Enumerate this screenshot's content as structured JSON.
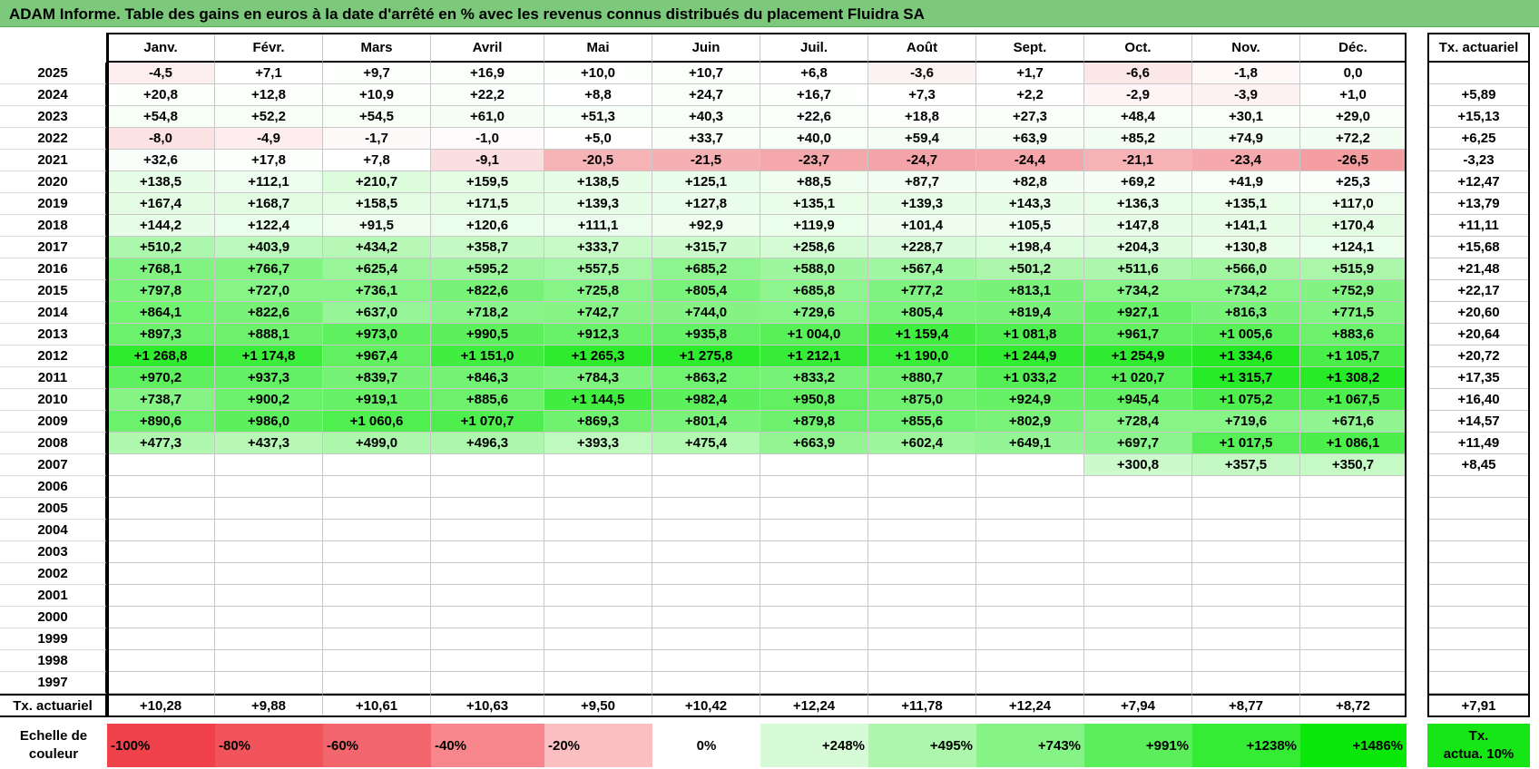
{
  "title": "ADAM Informe. Table des gains en euros à la date d'arrêté en % avec les revenus connus distribués du placement Fluidra SA",
  "months": [
    "Janv.",
    "Févr.",
    "Mars",
    "Avril",
    "Mai",
    "Juin",
    "Juil.",
    "Août",
    "Sept.",
    "Oct.",
    "Nov.",
    "Déc."
  ],
  "rate_header": "Tx. actuariel",
  "rows": [
    {
      "year": "2025",
      "values": [
        "-4,5",
        "+7,1",
        "+9,7",
        "+16,9",
        "+10,0",
        "+10,7",
        "+6,8",
        "-3,6",
        "+1,7",
        "-6,6",
        "-1,8",
        "0,0"
      ],
      "rate": ""
    },
    {
      "year": "2024",
      "values": [
        "+20,8",
        "+12,8",
        "+10,9",
        "+22,2",
        "+8,8",
        "+24,7",
        "+16,7",
        "+7,3",
        "+2,2",
        "-2,9",
        "-3,9",
        "+1,0"
      ],
      "rate": "+5,89"
    },
    {
      "year": "2023",
      "values": [
        "+54,8",
        "+52,2",
        "+54,5",
        "+61,0",
        "+51,3",
        "+40,3",
        "+22,6",
        "+18,8",
        "+27,3",
        "+48,4",
        "+30,1",
        "+29,0"
      ],
      "rate": "+15,13"
    },
    {
      "year": "2022",
      "values": [
        "-8,0",
        "-4,9",
        "-1,7",
        "-1,0",
        "+5,0",
        "+33,7",
        "+40,0",
        "+59,4",
        "+63,9",
        "+85,2",
        "+74,9",
        "+72,2"
      ],
      "rate": "+6,25"
    },
    {
      "year": "2021",
      "values": [
        "+32,6",
        "+17,8",
        "+7,8",
        "-9,1",
        "-20,5",
        "-21,5",
        "-23,7",
        "-24,7",
        "-24,4",
        "-21,1",
        "-23,4",
        "-26,5"
      ],
      "rate": "-3,23"
    },
    {
      "year": "2020",
      "values": [
        "+138,5",
        "+112,1",
        "+210,7",
        "+159,5",
        "+138,5",
        "+125,1",
        "+88,5",
        "+87,7",
        "+82,8",
        "+69,2",
        "+41,9",
        "+25,3"
      ],
      "rate": "+12,47"
    },
    {
      "year": "2019",
      "values": [
        "+167,4",
        "+168,7",
        "+158,5",
        "+171,5",
        "+139,3",
        "+127,8",
        "+135,1",
        "+139,3",
        "+143,3",
        "+136,3",
        "+135,1",
        "+117,0"
      ],
      "rate": "+13,79"
    },
    {
      "year": "2018",
      "values": [
        "+144,2",
        "+122,4",
        "+91,5",
        "+120,6",
        "+111,1",
        "+92,9",
        "+119,9",
        "+101,4",
        "+105,5",
        "+147,8",
        "+141,1",
        "+170,4"
      ],
      "rate": "+11,11"
    },
    {
      "year": "2017",
      "values": [
        "+510,2",
        "+403,9",
        "+434,2",
        "+358,7",
        "+333,7",
        "+315,7",
        "+258,6",
        "+228,7",
        "+198,4",
        "+204,3",
        "+130,8",
        "+124,1"
      ],
      "rate": "+15,68"
    },
    {
      "year": "2016",
      "values": [
        "+768,1",
        "+766,7",
        "+625,4",
        "+595,2",
        "+557,5",
        "+685,2",
        "+588,0",
        "+567,4",
        "+501,2",
        "+511,6",
        "+566,0",
        "+515,9"
      ],
      "rate": "+21,48"
    },
    {
      "year": "2015",
      "values": [
        "+797,8",
        "+727,0",
        "+736,1",
        "+822,6",
        "+725,8",
        "+805,4",
        "+685,8",
        "+777,2",
        "+813,1",
        "+734,2",
        "+734,2",
        "+752,9"
      ],
      "rate": "+22,17"
    },
    {
      "year": "2014",
      "values": [
        "+864,1",
        "+822,6",
        "+637,0",
        "+718,2",
        "+742,7",
        "+744,0",
        "+729,6",
        "+805,4",
        "+819,4",
        "+927,1",
        "+816,3",
        "+771,5"
      ],
      "rate": "+20,60"
    },
    {
      "year": "2013",
      "values": [
        "+897,3",
        "+888,1",
        "+973,0",
        "+990,5",
        "+912,3",
        "+935,8",
        "+1 004,0",
        "+1 159,4",
        "+1 081,8",
        "+961,7",
        "+1 005,6",
        "+883,6"
      ],
      "rate": "+20,64"
    },
    {
      "year": "2012",
      "values": [
        "+1 268,8",
        "+1 174,8",
        "+967,4",
        "+1 151,0",
        "+1 265,3",
        "+1 275,8",
        "+1 212,1",
        "+1 190,0",
        "+1 244,9",
        "+1 254,9",
        "+1 334,6",
        "+1 105,7"
      ],
      "rate": "+20,72"
    },
    {
      "year": "2011",
      "values": [
        "+970,2",
        "+937,3",
        "+839,7",
        "+846,3",
        "+784,3",
        "+863,2",
        "+833,2",
        "+880,7",
        "+1 033,2",
        "+1 020,7",
        "+1 315,7",
        "+1 308,2"
      ],
      "rate": "+17,35"
    },
    {
      "year": "2010",
      "values": [
        "+738,7",
        "+900,2",
        "+919,1",
        "+885,6",
        "+1 144,5",
        "+982,4",
        "+950,8",
        "+875,0",
        "+924,9",
        "+945,4",
        "+1 075,2",
        "+1 067,5"
      ],
      "rate": "+16,40"
    },
    {
      "year": "2009",
      "values": [
        "+890,6",
        "+986,0",
        "+1 060,6",
        "+1 070,7",
        "+869,3",
        "+801,4",
        "+879,8",
        "+855,6",
        "+802,9",
        "+728,4",
        "+719,6",
        "+671,6"
      ],
      "rate": "+14,57"
    },
    {
      "year": "2008",
      "values": [
        "+477,3",
        "+437,3",
        "+499,0",
        "+496,3",
        "+393,3",
        "+475,4",
        "+663,9",
        "+602,4",
        "+649,1",
        "+697,7",
        "+1 017,5",
        "+1 086,1"
      ],
      "rate": "+11,49"
    },
    {
      "year": "2007",
      "values": [
        "",
        "",
        "",
        "",
        "",
        "",
        "",
        "",
        "",
        "+300,8",
        "+357,5",
        "+350,7"
      ],
      "rate": "+8,45"
    },
    {
      "year": "2006",
      "values": [
        "",
        "",
        "",
        "",
        "",
        "",
        "",
        "",
        "",
        "",
        "",
        ""
      ],
      "rate": ""
    },
    {
      "year": "2005",
      "values": [
        "",
        "",
        "",
        "",
        "",
        "",
        "",
        "",
        "",
        "",
        "",
        ""
      ],
      "rate": ""
    },
    {
      "year": "2004",
      "values": [
        "",
        "",
        "",
        "",
        "",
        "",
        "",
        "",
        "",
        "",
        "",
        ""
      ],
      "rate": ""
    },
    {
      "year": "2003",
      "values": [
        "",
        "",
        "",
        "",
        "",
        "",
        "",
        "",
        "",
        "",
        "",
        ""
      ],
      "rate": ""
    },
    {
      "year": "2002",
      "values": [
        "",
        "",
        "",
        "",
        "",
        "",
        "",
        "",
        "",
        "",
        "",
        ""
      ],
      "rate": ""
    },
    {
      "year": "2001",
      "values": [
        "",
        "",
        "",
        "",
        "",
        "",
        "",
        "",
        "",
        "",
        "",
        ""
      ],
      "rate": ""
    },
    {
      "year": "2000",
      "values": [
        "",
        "",
        "",
        "",
        "",
        "",
        "",
        "",
        "",
        "",
        "",
        ""
      ],
      "rate": ""
    },
    {
      "year": "1999",
      "values": [
        "",
        "",
        "",
        "",
        "",
        "",
        "",
        "",
        "",
        "",
        "",
        ""
      ],
      "rate": ""
    },
    {
      "year": "1998",
      "values": [
        "",
        "",
        "",
        "",
        "",
        "",
        "",
        "",
        "",
        "",
        "",
        ""
      ],
      "rate": ""
    },
    {
      "year": "1997",
      "values": [
        "",
        "",
        "",
        "",
        "",
        "",
        "",
        "",
        "",
        "",
        "",
        ""
      ],
      "rate": ""
    }
  ],
  "summary": {
    "label": "Tx. actuariel",
    "values": [
      "+10,28",
      "+9,88",
      "+10,61",
      "+10,63",
      "+9,50",
      "+10,42",
      "+12,24",
      "+11,78",
      "+12,24",
      "+7,94",
      "+8,77",
      "+8,72"
    ],
    "rate": "+7,91"
  },
  "legend": {
    "label_line1": "Echelle de",
    "label_line2": "couleur",
    "steps": [
      {
        "text": "-100%",
        "color": "#f0424b"
      },
      {
        "text": "-80%",
        "color": "#f2545c"
      },
      {
        "text": "-60%",
        "color": "#f4666d"
      },
      {
        "text": "-40%",
        "color": "#f7878c"
      },
      {
        "text": "-20%",
        "color": "#fbbfc2"
      },
      {
        "text": "0%",
        "color": "#ffffff"
      },
      {
        "text": "+248%",
        "color": "#d6fbd6"
      },
      {
        "text": "+495%",
        "color": "#adf7ad"
      },
      {
        "text": "+743%",
        "color": "#85f385"
      },
      {
        "text": "+991%",
        "color": "#5cef5c"
      },
      {
        "text": "+1238%",
        "color": "#33ec33"
      },
      {
        "text": "+1486%",
        "color": "#0ae80a"
      }
    ],
    "rate_line1": "Tx.",
    "rate_line2": "actua. 10%",
    "rate_color": "#16e616"
  }
}
